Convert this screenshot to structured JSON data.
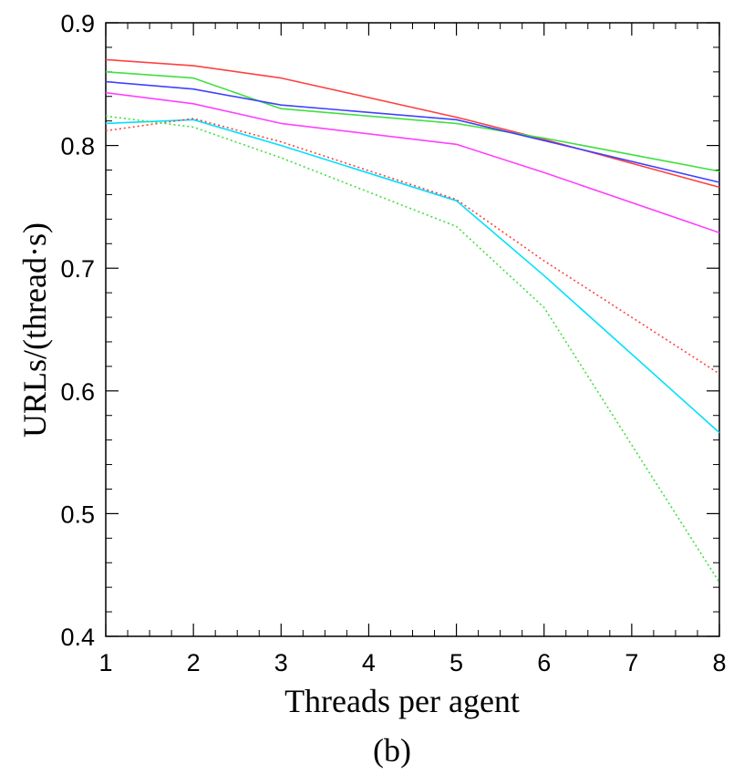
{
  "chart_data": {
    "type": "line",
    "title": "",
    "caption": "(b)",
    "xlabel": "Threads per agent",
    "ylabel": "URLs/(thread·s)",
    "xlim": [
      1,
      8
    ],
    "ylim": [
      0.4,
      0.9
    ],
    "xticks": [
      "1",
      "2",
      "3",
      "4",
      "5",
      "6",
      "7",
      "8"
    ],
    "yticks": [
      "0.4",
      "0.5",
      "0.6",
      "0.7",
      "0.8",
      "0.9"
    ],
    "grid": false,
    "legend": "none",
    "x": [
      1,
      2,
      3,
      5,
      6,
      8
    ],
    "series": [
      {
        "name": "red solid",
        "color": "#ff4040",
        "style": "solid",
        "values": [
          0.87,
          0.865,
          0.855,
          0.823,
          0.805,
          0.766
        ]
      },
      {
        "name": "green solid",
        "color": "#40e040",
        "style": "solid",
        "values": [
          0.86,
          0.855,
          0.83,
          0.818,
          0.806,
          0.779
        ]
      },
      {
        "name": "blue solid",
        "color": "#4040ff",
        "style": "solid",
        "values": [
          0.852,
          0.846,
          0.833,
          0.821,
          0.804,
          0.77
        ]
      },
      {
        "name": "magenta solid",
        "color": "#ff40ff",
        "style": "solid",
        "values": [
          0.843,
          0.834,
          0.818,
          0.801,
          0.778,
          0.729
        ]
      },
      {
        "name": "cyan solid",
        "color": "#00e0ff",
        "style": "solid",
        "values": [
          0.818,
          0.821,
          0.8,
          0.755,
          0.694,
          0.566
        ]
      },
      {
        "name": "red dotted",
        "color": "#ff4040",
        "style": "dotted",
        "values": [
          0.812,
          0.822,
          0.803,
          0.756,
          0.706,
          0.614
        ]
      },
      {
        "name": "green dotted",
        "color": "#40e040",
        "style": "dotted",
        "values": [
          0.824,
          0.815,
          0.79,
          0.734,
          0.668,
          0.444
        ]
      }
    ]
  }
}
